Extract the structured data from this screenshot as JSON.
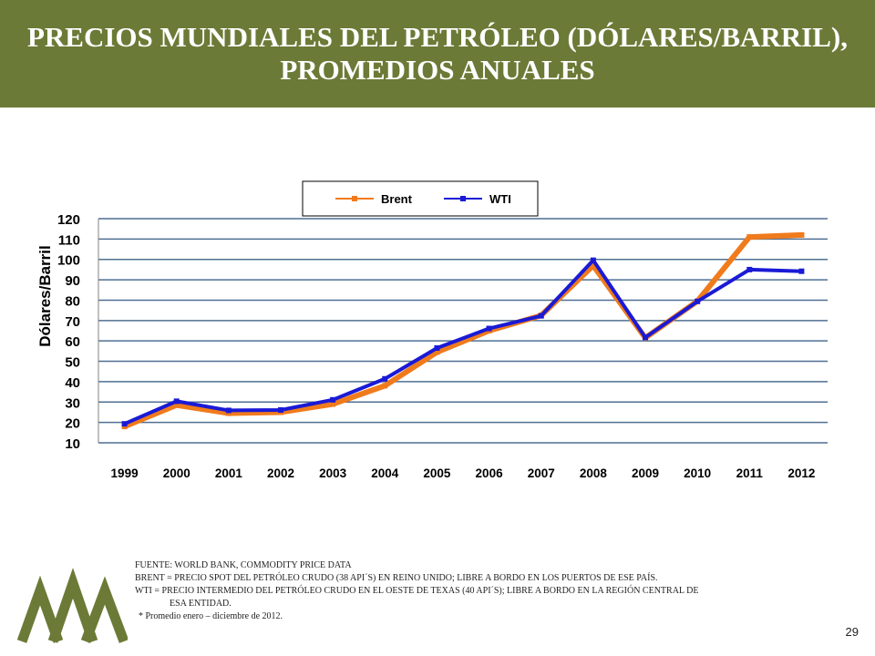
{
  "header": {
    "title_line1": "PRECIOS MUNDIALES DEL PETRÓLEO (DÓLARES/BARRIL),",
    "title_line2": "PROMEDIOS ANUALES"
  },
  "chart_data": {
    "type": "line",
    "x": [
      "1999",
      "2000",
      "2001",
      "2002",
      "2003",
      "2004",
      "2005",
      "2006",
      "2007",
      "2008",
      "2009",
      "2010",
      "2011",
      "2012"
    ],
    "ylabel": "Dólares/Barril",
    "ylim": [
      10,
      120
    ],
    "yticks": [
      10,
      20,
      30,
      40,
      50,
      60,
      70,
      80,
      90,
      100,
      110,
      120
    ],
    "grid": true,
    "legend_position": "top-center",
    "series": [
      {
        "name": "Brent",
        "color": "#f07b1c",
        "values": [
          18,
          28.5,
          24.5,
          25,
          29,
          38,
          54.5,
          65,
          72.5,
          97,
          61.5,
          79.5,
          111,
          112
        ]
      },
      {
        "name": "WTI",
        "color": "#1a1ad6",
        "values": [
          19.3,
          30.4,
          25.9,
          26.1,
          31.1,
          41.4,
          56.5,
          66.1,
          72.3,
          99.6,
          61.7,
          79.4,
          95,
          94.2
        ]
      }
    ]
  },
  "notes": {
    "source": "FUENTE: WORLD BANK, COMMODITY PRICE DATA",
    "brent": "BRENT = PRECIO SPOT DEL PETRÓLEO CRUDO (38 API´S) EN REINO UNIDO; LIBRE A BORDO EN LOS PUERTOS DE ESE PAÍS.",
    "wti_line1": "WTI = PRECIO INTERMEDIO DEL PETRÓLEO CRUDO EN EL OESTE DE TEXAS (40 API´S); LIBRE A BORDO EN LA REGIÓN CENTRAL DE",
    "wti_line2": "ESA      ENTIDAD.",
    "average": "* Promedio enero – diciembre  de 2012."
  },
  "page_number": "29",
  "logo": {
    "icon": "mountains-logo-icon",
    "color": "#6b7a36"
  }
}
